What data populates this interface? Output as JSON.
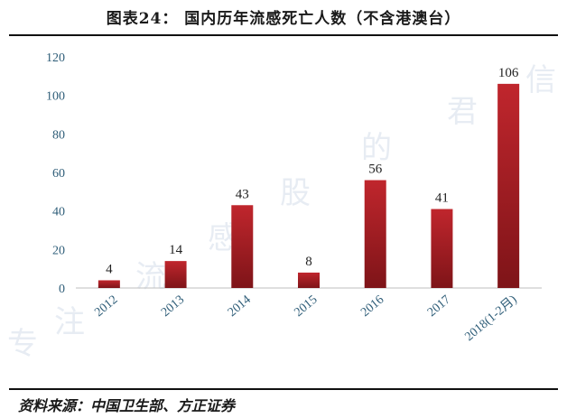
{
  "header": {
    "title": "图表24：   国内历年流感死亡人数（不含港澳台）"
  },
  "footer": {
    "source": "资料来源：中国卫生部、方正证券"
  },
  "watermark": {
    "text": "专注流感股的君信"
  },
  "colors": {
    "bar": "#c0262d",
    "bar_dark": "#7e1418",
    "axis_text": "#2e5d78",
    "rule": "#111111"
  },
  "chart_data": {
    "type": "bar",
    "title": "国内历年流感死亡人数（不含港澳台）",
    "categories": [
      "2012",
      "2013",
      "2014",
      "2015",
      "2016",
      "2017",
      "2018(1-2月)"
    ],
    "values": [
      4,
      14,
      43,
      8,
      56,
      41,
      106
    ],
    "data_labels": [
      "4",
      "14",
      "43",
      "8",
      "56",
      "41",
      "106"
    ],
    "yticks": [
      "0",
      "20",
      "40",
      "60",
      "80",
      "100",
      "120"
    ],
    "ylim": [
      0,
      120
    ],
    "xlabel": "",
    "ylabel": "",
    "grid": false,
    "legend": "none"
  }
}
